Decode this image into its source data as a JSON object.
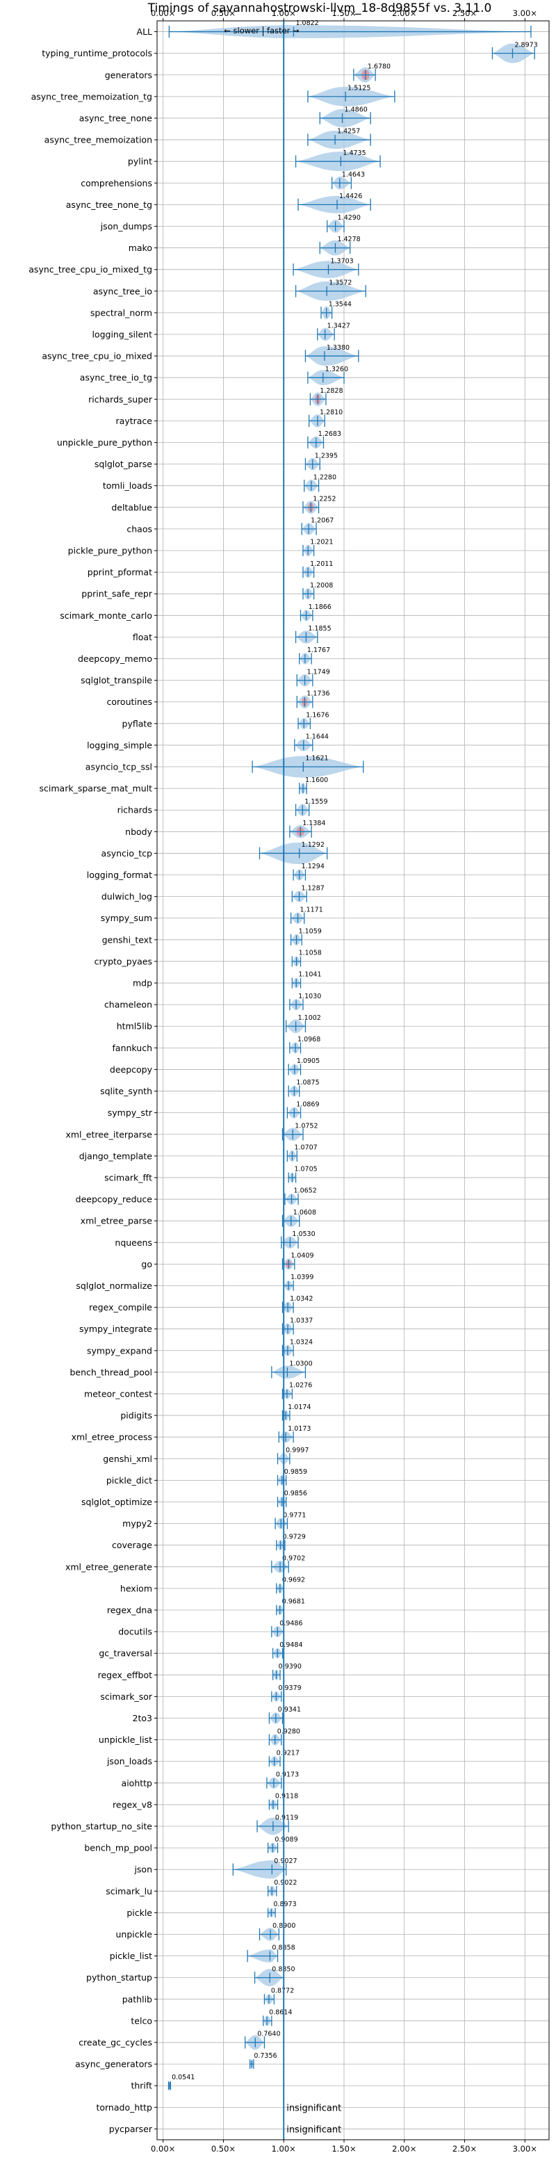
{
  "chart_data": {
    "type": "violin",
    "title": "Timings of savannahostrowski-llvm_18-8d9855f vs. 3.11.0",
    "direction_labels": {
      "slower": "← slower",
      "faster": "faster →"
    },
    "xlim": [
      -0.05,
      3.2
    ],
    "xticks": [
      0.0,
      0.5,
      1.0,
      1.5,
      2.0,
      2.5,
      3.0
    ],
    "xtick_labels": [
      "0.00×",
      "0.50×",
      "1.00×",
      "1.50×",
      "2.00×",
      "2.50×",
      "3.00×"
    ],
    "grid": true,
    "reference_line": 1.0,
    "colors": {
      "violin": "#a6c8e6",
      "whisker": "#1f77b4",
      "significant_marker": "#e8838a",
      "reference": "#1f77b4",
      "grid": "#b0b0b0"
    },
    "insignificant_label": "insignificant",
    "benchmarks": [
      {
        "name": "ALL",
        "label": "1.0822",
        "value": 1.0822,
        "min": 0.05,
        "max": 3.05,
        "w": 0.3
      },
      {
        "name": "typing_runtime_protocols",
        "label": "2.8973",
        "value": 2.8973,
        "min": 2.73,
        "max": 3.08,
        "w": 0.45
      },
      {
        "name": "generators",
        "label": "1.6780",
        "value": 1.678,
        "min": 1.58,
        "max": 1.76,
        "w": 0.35,
        "sig": true
      },
      {
        "name": "async_tree_memoization_tg",
        "label": "1.5125",
        "value": 1.5125,
        "min": 1.2,
        "max": 1.92,
        "w": 0.45
      },
      {
        "name": "async_tree_none",
        "label": "1.4860",
        "value": 1.486,
        "min": 1.3,
        "max": 1.72,
        "w": 0.42
      },
      {
        "name": "async_tree_memoization",
        "label": "1.4257",
        "value": 1.4257,
        "min": 1.2,
        "max": 1.72,
        "w": 0.42
      },
      {
        "name": "pylint",
        "label": "1.4735",
        "value": 1.4735,
        "min": 1.1,
        "max": 1.8,
        "w": 0.45
      },
      {
        "name": "comprehensions",
        "label": "1.4643",
        "value": 1.4643,
        "min": 1.4,
        "max": 1.56,
        "w": 0.3
      },
      {
        "name": "async_tree_none_tg",
        "label": "1.4426",
        "value": 1.4426,
        "min": 1.12,
        "max": 1.72,
        "w": 0.4
      },
      {
        "name": "json_dumps",
        "label": "1.4290",
        "value": 1.429,
        "min": 1.36,
        "max": 1.5,
        "w": 0.3
      },
      {
        "name": "mako",
        "label": "1.4278",
        "value": 1.4278,
        "min": 1.3,
        "max": 1.55,
        "w": 0.35
      },
      {
        "name": "async_tree_cpu_io_mixed_tg",
        "label": "1.3703",
        "value": 1.3703,
        "min": 1.08,
        "max": 1.62,
        "w": 0.4
      },
      {
        "name": "async_tree_io",
        "label": "1.3572",
        "value": 1.3572,
        "min": 1.1,
        "max": 1.68,
        "w": 0.45
      },
      {
        "name": "spectral_norm",
        "label": "1.3544",
        "value": 1.3544,
        "min": 1.31,
        "max": 1.4,
        "w": 0.3
      },
      {
        "name": "logging_silent",
        "label": "1.3427",
        "value": 1.3427,
        "min": 1.28,
        "max": 1.42,
        "w": 0.3
      },
      {
        "name": "async_tree_cpu_io_mixed",
        "label": "1.3380",
        "value": 1.338,
        "min": 1.18,
        "max": 1.62,
        "w": 0.45
      },
      {
        "name": "async_tree_io_tg",
        "label": "1.3260",
        "value": 1.326,
        "min": 1.2,
        "max": 1.5,
        "w": 0.35
      },
      {
        "name": "richards_super",
        "label": "1.2828",
        "value": 1.2828,
        "min": 1.22,
        "max": 1.35,
        "w": 0.32,
        "sig": true
      },
      {
        "name": "raytrace",
        "label": "1.2810",
        "value": 1.281,
        "min": 1.21,
        "max": 1.34,
        "w": 0.3
      },
      {
        "name": "unpickle_pure_python",
        "label": "1.2683",
        "value": 1.2683,
        "min": 1.2,
        "max": 1.33,
        "w": 0.28
      },
      {
        "name": "sqlglot_parse",
        "label": "1.2395",
        "value": 1.2395,
        "min": 1.18,
        "max": 1.3,
        "w": 0.28
      },
      {
        "name": "tomli_loads",
        "label": "1.2280",
        "value": 1.228,
        "min": 1.17,
        "max": 1.29,
        "w": 0.28
      },
      {
        "name": "deltablue",
        "label": "1.2252",
        "value": 1.2252,
        "min": 1.16,
        "max": 1.29,
        "w": 0.3,
        "sig": true
      },
      {
        "name": "chaos",
        "label": "1.2067",
        "value": 1.2067,
        "min": 1.15,
        "max": 1.27,
        "w": 0.28
      },
      {
        "name": "pickle_pure_python",
        "label": "1.2021",
        "value": 1.2021,
        "min": 1.16,
        "max": 1.25,
        "w": 0.26
      },
      {
        "name": "pprint_pformat",
        "label": "1.2011",
        "value": 1.2011,
        "min": 1.16,
        "max": 1.25,
        "w": 0.26
      },
      {
        "name": "pprint_safe_repr",
        "label": "1.2008",
        "value": 1.2008,
        "min": 1.16,
        "max": 1.25,
        "w": 0.26
      },
      {
        "name": "scimark_monte_carlo",
        "label": "1.1866",
        "value": 1.1866,
        "min": 1.14,
        "max": 1.24,
        "w": 0.26
      },
      {
        "name": "float",
        "label": "1.1855",
        "value": 1.1855,
        "min": 1.1,
        "max": 1.28,
        "w": 0.3
      },
      {
        "name": "deepcopy_memo",
        "label": "1.1767",
        "value": 1.1767,
        "min": 1.13,
        "max": 1.23,
        "w": 0.26
      },
      {
        "name": "sqlglot_transpile",
        "label": "1.1749",
        "value": 1.1749,
        "min": 1.11,
        "max": 1.24,
        "w": 0.28
      },
      {
        "name": "coroutines",
        "label": "1.1736",
        "value": 1.1736,
        "min": 1.11,
        "max": 1.24,
        "w": 0.3,
        "sig": true
      },
      {
        "name": "pyflate",
        "label": "1.1676",
        "value": 1.1676,
        "min": 1.12,
        "max": 1.22,
        "w": 0.26
      },
      {
        "name": "logging_simple",
        "label": "1.1644",
        "value": 1.1644,
        "min": 1.09,
        "max": 1.24,
        "w": 0.28
      },
      {
        "name": "asyncio_tcp_ssl",
        "label": "1.1621",
        "value": 1.1621,
        "min": 0.74,
        "max": 1.66,
        "w": 0.5
      },
      {
        "name": "scimark_sparse_mat_mult",
        "label": "1.1600",
        "value": 1.16,
        "min": 1.13,
        "max": 1.19,
        "w": 0.26
      },
      {
        "name": "richards",
        "label": "1.1559",
        "value": 1.1559,
        "min": 1.1,
        "max": 1.21,
        "w": 0.28
      },
      {
        "name": "nbody",
        "label": "1.1384",
        "value": 1.1384,
        "min": 1.05,
        "max": 1.23,
        "w": 0.3,
        "sig": true
      },
      {
        "name": "asyncio_tcp",
        "label": "1.1292",
        "value": 1.1292,
        "min": 0.8,
        "max": 1.36,
        "w": 0.5
      },
      {
        "name": "logging_format",
        "label": "1.1294",
        "value": 1.1294,
        "min": 1.08,
        "max": 1.18,
        "w": 0.26
      },
      {
        "name": "dulwich_log",
        "label": "1.1287",
        "value": 1.1287,
        "min": 1.07,
        "max": 1.19,
        "w": 0.26
      },
      {
        "name": "sympy_sum",
        "label": "1.1171",
        "value": 1.1171,
        "min": 1.06,
        "max": 1.17,
        "w": 0.26
      },
      {
        "name": "genshi_text",
        "label": "1.1059",
        "value": 1.1059,
        "min": 1.06,
        "max": 1.15,
        "w": 0.26
      },
      {
        "name": "crypto_pyaes",
        "label": "1.1058",
        "value": 1.1058,
        "min": 1.07,
        "max": 1.14,
        "w": 0.24
      },
      {
        "name": "mdp",
        "label": "1.1041",
        "value": 1.1041,
        "min": 1.07,
        "max": 1.14,
        "w": 0.24
      },
      {
        "name": "chameleon",
        "label": "1.1030",
        "value": 1.103,
        "min": 1.05,
        "max": 1.16,
        "w": 0.26
      },
      {
        "name": "html5lib",
        "label": "1.1002",
        "value": 1.1002,
        "min": 1.02,
        "max": 1.18,
        "w": 0.32
      },
      {
        "name": "fannkuch",
        "label": "1.0968",
        "value": 1.0968,
        "min": 1.05,
        "max": 1.14,
        "w": 0.26
      },
      {
        "name": "deepcopy",
        "label": "1.0905",
        "value": 1.0905,
        "min": 1.04,
        "max": 1.14,
        "w": 0.26
      },
      {
        "name": "sqlite_synth",
        "label": "1.0875",
        "value": 1.0875,
        "min": 1.04,
        "max": 1.13,
        "w": 0.26
      },
      {
        "name": "sympy_str",
        "label": "1.0869",
        "value": 1.0869,
        "min": 1.03,
        "max": 1.14,
        "w": 0.26
      },
      {
        "name": "xml_etree_iterparse",
        "label": "1.0752",
        "value": 1.0752,
        "min": 0.99,
        "max": 1.16,
        "w": 0.3
      },
      {
        "name": "django_template",
        "label": "1.0707",
        "value": 1.0707,
        "min": 1.03,
        "max": 1.11,
        "w": 0.26
      },
      {
        "name": "scimark_fft",
        "label": "1.0705",
        "value": 1.0705,
        "min": 1.04,
        "max": 1.1,
        "w": 0.24
      },
      {
        "name": "deepcopy_reduce",
        "label": "1.0652",
        "value": 1.0652,
        "min": 1.01,
        "max": 1.12,
        "w": 0.26
      },
      {
        "name": "xml_etree_parse",
        "label": "1.0608",
        "value": 1.0608,
        "min": 0.99,
        "max": 1.13,
        "w": 0.28
      },
      {
        "name": "nqueens",
        "label": "1.0530",
        "value": 1.053,
        "min": 0.98,
        "max": 1.12,
        "w": 0.28
      },
      {
        "name": "go",
        "label": "1.0409",
        "value": 1.0409,
        "min": 0.99,
        "max": 1.09,
        "w": 0.26,
        "sig": true
      },
      {
        "name": "sqlglot_normalize",
        "label": "1.0399",
        "value": 1.0399,
        "min": 1.0,
        "max": 1.08,
        "w": 0.24
      },
      {
        "name": "regex_compile",
        "label": "1.0342",
        "value": 1.0342,
        "min": 0.99,
        "max": 1.08,
        "w": 0.26
      },
      {
        "name": "sympy_integrate",
        "label": "1.0337",
        "value": 1.0337,
        "min": 0.99,
        "max": 1.08,
        "w": 0.26
      },
      {
        "name": "sympy_expand",
        "label": "1.0324",
        "value": 1.0324,
        "min": 0.99,
        "max": 1.08,
        "w": 0.26
      },
      {
        "name": "bench_thread_pool",
        "label": "1.0300",
        "value": 1.03,
        "min": 0.9,
        "max": 1.18,
        "w": 0.3
      },
      {
        "name": "meteor_contest",
        "label": "1.0276",
        "value": 1.0276,
        "min": 0.99,
        "max": 1.07,
        "w": 0.24
      },
      {
        "name": "pidigits",
        "label": "1.0174",
        "value": 1.0174,
        "min": 0.99,
        "max": 1.05,
        "w": 0.24
      },
      {
        "name": "xml_etree_process",
        "label": "1.0173",
        "value": 1.0173,
        "min": 0.96,
        "max": 1.08,
        "w": 0.26
      },
      {
        "name": "genshi_xml",
        "label": "0.9997",
        "value": 0.9997,
        "min": 0.95,
        "max": 1.05,
        "w": 0.26
      },
      {
        "name": "pickle_dict",
        "label": "0.9859",
        "value": 0.9859,
        "min": 0.95,
        "max": 1.02,
        "w": 0.24
      },
      {
        "name": "sqlglot_optimize",
        "label": "0.9856",
        "value": 0.9856,
        "min": 0.95,
        "max": 1.02,
        "w": 0.24
      },
      {
        "name": "mypy2",
        "label": "0.9771",
        "value": 0.9771,
        "min": 0.93,
        "max": 1.03,
        "w": 0.26
      },
      {
        "name": "coverage",
        "label": "0.9729",
        "value": 0.9729,
        "min": 0.94,
        "max": 1.01,
        "w": 0.24
      },
      {
        "name": "xml_etree_generate",
        "label": "0.9702",
        "value": 0.9702,
        "min": 0.9,
        "max": 1.04,
        "w": 0.28
      },
      {
        "name": "hexiom",
        "label": "0.9692",
        "value": 0.9692,
        "min": 0.94,
        "max": 1.0,
        "w": 0.24
      },
      {
        "name": "regex_dna",
        "label": "0.9681",
        "value": 0.9681,
        "min": 0.94,
        "max": 1.0,
        "w": 0.24
      },
      {
        "name": "docutils",
        "label": "0.9486",
        "value": 0.9486,
        "min": 0.9,
        "max": 1.0,
        "w": 0.26
      },
      {
        "name": "gc_traversal",
        "label": "0.9484",
        "value": 0.9484,
        "min": 0.91,
        "max": 0.99,
        "w": 0.24
      },
      {
        "name": "regex_effbot",
        "label": "0.9390",
        "value": 0.939,
        "min": 0.91,
        "max": 0.97,
        "w": 0.24
      },
      {
        "name": "scimark_sor",
        "label": "0.9379",
        "value": 0.9379,
        "min": 0.9,
        "max": 0.98,
        "w": 0.24
      },
      {
        "name": "2to3",
        "label": "0.9341",
        "value": 0.9341,
        "min": 0.88,
        "max": 0.99,
        "w": 0.26
      },
      {
        "name": "unpickle_list",
        "label": "0.9280",
        "value": 0.928,
        "min": 0.88,
        "max": 0.98,
        "w": 0.26
      },
      {
        "name": "json_loads",
        "label": "0.9217",
        "value": 0.9217,
        "min": 0.88,
        "max": 0.97,
        "w": 0.24
      },
      {
        "name": "aiohttp",
        "label": "0.9173",
        "value": 0.9173,
        "min": 0.86,
        "max": 0.98,
        "w": 0.26
      },
      {
        "name": "regex_v8",
        "label": "0.9118",
        "value": 0.9118,
        "min": 0.88,
        "max": 0.95,
        "w": 0.24
      },
      {
        "name": "python_startup_no_site",
        "label": "0.9119",
        "value": 0.9119,
        "min": 0.78,
        "max": 1.04,
        "w": 0.4
      },
      {
        "name": "bench_mp_pool",
        "label": "0.9089",
        "value": 0.9089,
        "min": 0.87,
        "max": 0.95,
        "w": 0.24
      },
      {
        "name": "json",
        "label": "0.9027",
        "value": 0.9027,
        "min": 0.58,
        "max": 1.02,
        "w": 0.42
      },
      {
        "name": "scimark_lu",
        "label": "0.9022",
        "value": 0.9022,
        "min": 0.87,
        "max": 0.94,
        "w": 0.24
      },
      {
        "name": "pickle",
        "label": "0.8973",
        "value": 0.8973,
        "min": 0.87,
        "max": 0.93,
        "w": 0.22
      },
      {
        "name": "unpickle",
        "label": "0.8900",
        "value": 0.89,
        "min": 0.8,
        "max": 0.96,
        "w": 0.3
      },
      {
        "name": "pickle_list",
        "label": "0.8858",
        "value": 0.8858,
        "min": 0.7,
        "max": 0.95,
        "w": 0.3
      },
      {
        "name": "python_startup",
        "label": "0.8850",
        "value": 0.885,
        "min": 0.76,
        "max": 1.0,
        "w": 0.4
      },
      {
        "name": "pathlib",
        "label": "0.8772",
        "value": 0.8772,
        "min": 0.84,
        "max": 0.92,
        "w": 0.24
      },
      {
        "name": "telco",
        "label": "0.8614",
        "value": 0.8614,
        "min": 0.83,
        "max": 0.9,
        "w": 0.24
      },
      {
        "name": "create_gc_cycles",
        "label": "0.7640",
        "value": 0.764,
        "min": 0.68,
        "max": 0.84,
        "w": 0.34
      },
      {
        "name": "async_generators",
        "label": "0.7356",
        "value": 0.7356,
        "min": 0.72,
        "max": 0.75,
        "w": 0.22
      },
      {
        "name": "thrift",
        "label": "0.0541",
        "value": 0.0541,
        "min": 0.045,
        "max": 0.062,
        "w": 0.2
      },
      {
        "name": "tornado_http",
        "insignificant": true
      },
      {
        "name": "pycparser",
        "insignificant": true
      }
    ]
  }
}
